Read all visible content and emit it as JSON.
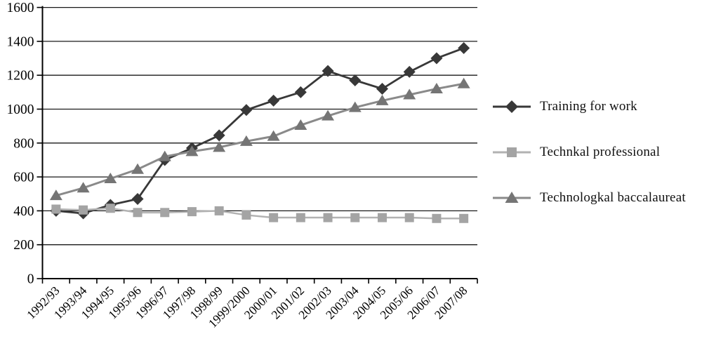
{
  "chart_data": {
    "type": "line",
    "title": "",
    "xlabel": "",
    "ylabel": "",
    "categories": [
      "1992/93",
      "1993/94",
      "1994/95",
      "1995/96",
      "1996/97",
      "1997/98",
      "1998/99",
      "1999/2000",
      "2000/01",
      "2001/02",
      "2002/03",
      "2003/04",
      "2004/05",
      "2005/06",
      "2006/07",
      "2007/08"
    ],
    "y_ticks": [
      "0",
      "200",
      "400",
      "600",
      "800",
      "1000",
      "1200",
      "1400",
      "1600"
    ],
    "ylim": [
      0,
      1600
    ],
    "grid": true,
    "legend_position": "right",
    "series": [
      {
        "name": "Training for work",
        "marker": "diamond",
        "marker_color": "#383838",
        "line_color": "#383838",
        "values": [
          400,
          385,
          435,
          470,
          700,
          770,
          845,
          995,
          1050,
          1100,
          1225,
          1170,
          1120,
          1220,
          1300,
          1360
        ]
      },
      {
        "name": "Technkal professional",
        "marker": "square",
        "marker_color": "#a4a4a4",
        "line_color": "#b2b2b2",
        "values": [
          410,
          405,
          415,
          390,
          390,
          395,
          400,
          375,
          360,
          360,
          360,
          360,
          360,
          360,
          355,
          355
        ]
      },
      {
        "name": "Technologkal baccalaureat",
        "marker": "triangle",
        "marker_color": "#757575",
        "line_color": "#8a8a8a",
        "values": [
          490,
          535,
          590,
          645,
          720,
          750,
          775,
          810,
          840,
          905,
          960,
          1010,
          1050,
          1085,
          1120,
          1150
        ]
      }
    ],
    "colors": {
      "axis": "#000000",
      "gridline": "#1a1a1a",
      "tick_text": "#000000"
    }
  }
}
